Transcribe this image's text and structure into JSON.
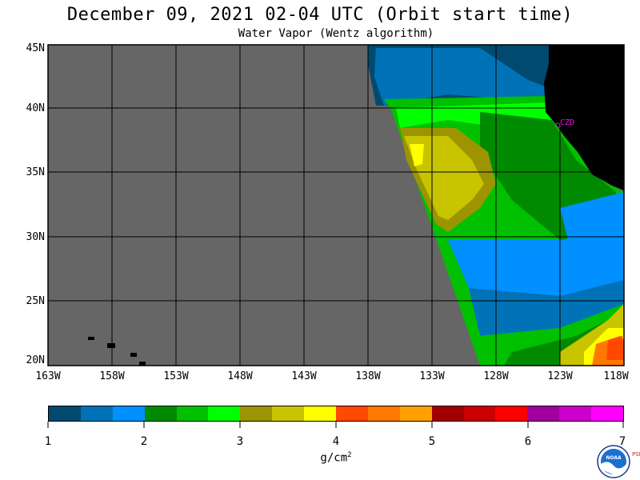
{
  "title": "December 09, 2021  02-04 UTC  (Orbit start time)",
  "subtitle": "Water Vapor (Wentz algorithm)",
  "lat_labels": [
    "45N",
    "40N",
    "35N",
    "30N",
    "25N",
    "20N"
  ],
  "lon_labels": [
    "163W",
    "158W",
    "153W",
    "148W",
    "143W",
    "138W",
    "133W",
    "128W",
    "123W",
    "118W"
  ],
  "station_label": "CZD",
  "colorbar": {
    "ticks": [
      "1",
      "2",
      "3",
      "4",
      "5",
      "6",
      "7"
    ],
    "unit": "g/cm",
    "unit_sup": "2",
    "colors": [
      "#004a70",
      "#0073b8",
      "#0090ff",
      "#008a00",
      "#00c000",
      "#00ff00",
      "#9c9400",
      "#c8c400",
      "#ffff00",
      "#ff4800",
      "#ff7800",
      "#ffa000",
      "#a00000",
      "#cc0000",
      "#ff0000",
      "#a000a0",
      "#cc00cc",
      "#ff00ff"
    ]
  },
  "logo": {
    "text": "NOAA",
    "side_text": "PSL"
  },
  "colors": {
    "no_data": "#666666",
    "land": "#000000",
    "deep_blue": "#004a70",
    "mid_blue": "#0073b8",
    "light_blue": "#0090ff",
    "dark_green": "#008a00",
    "green": "#00c000",
    "bright_green": "#00ff00",
    "olive": "#9c9400",
    "yellow_olive": "#c8c400",
    "yellow": "#ffff00",
    "orange_red": "#ff4800",
    "orange": "#ff7800",
    "station": "#ff00ff"
  }
}
